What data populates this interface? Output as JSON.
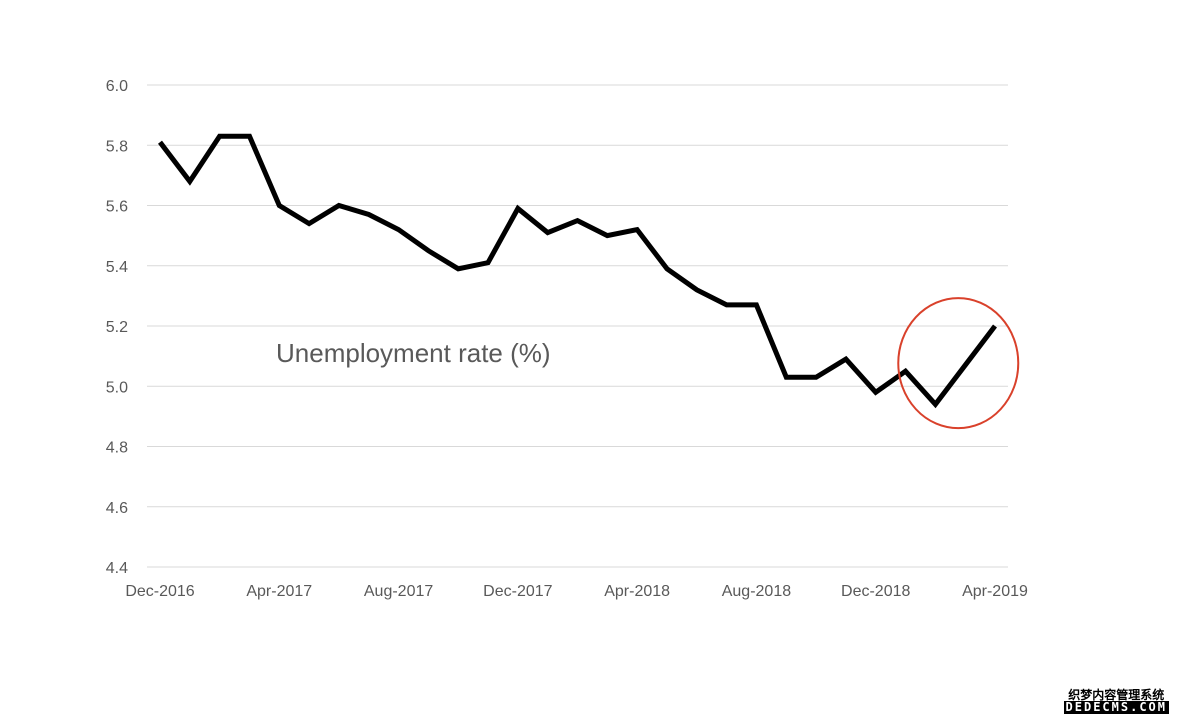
{
  "chart_data": {
    "type": "line",
    "title": "",
    "xlabel": "",
    "ylabel": "",
    "x": [
      "Dec-2016",
      "Jan-2017",
      "Feb-2017",
      "Mar-2017",
      "Apr-2017",
      "May-2017",
      "Jun-2017",
      "Jul-2017",
      "Aug-2017",
      "Sep-2017",
      "Oct-2017",
      "Nov-2017",
      "Dec-2017",
      "Jan-2018",
      "Feb-2018",
      "Mar-2018",
      "Apr-2018",
      "May-2018",
      "Jun-2018",
      "Jul-2018",
      "Aug-2018",
      "Sep-2018",
      "Oct-2018",
      "Nov-2018",
      "Dec-2018",
      "Jan-2019",
      "Feb-2019",
      "Mar-2019",
      "Apr-2019"
    ],
    "series": [
      {
        "values": [
          5.81,
          5.68,
          5.83,
          5.83,
          5.6,
          5.54,
          5.6,
          5.57,
          5.52,
          5.45,
          5.39,
          5.41,
          5.59,
          5.51,
          5.55,
          5.5,
          5.52,
          5.39,
          5.32,
          5.27,
          5.27,
          5.03,
          5.03,
          5.09,
          4.98,
          5.05,
          4.94,
          5.07,
          5.2
        ]
      }
    ],
    "x_tick_labels": [
      "Dec-2016",
      "Apr-2017",
      "Aug-2017",
      "Dec-2017",
      "Apr-2018",
      "Aug-2018",
      "Dec-2018",
      "Apr-2019"
    ],
    "y_tick_labels": [
      "4.4",
      "4.6",
      "4.8",
      "5.0",
      "5.2",
      "5.4",
      "5.6",
      "5.8",
      "6.0"
    ],
    "ylim": [
      4.4,
      6.0
    ],
    "grid": "horizontal",
    "annotation": "Unemployment rate (%)",
    "highlight": {
      "shape": "ellipse",
      "around": [
        "Feb-2019",
        "Apr-2019"
      ],
      "color": "#d9412b"
    },
    "line_color": "#000000",
    "grid_color": "#d9d9d9"
  },
  "watermark": {
    "line1": "织梦内容管理系统",
    "line2": "DEDECMS.COM"
  }
}
